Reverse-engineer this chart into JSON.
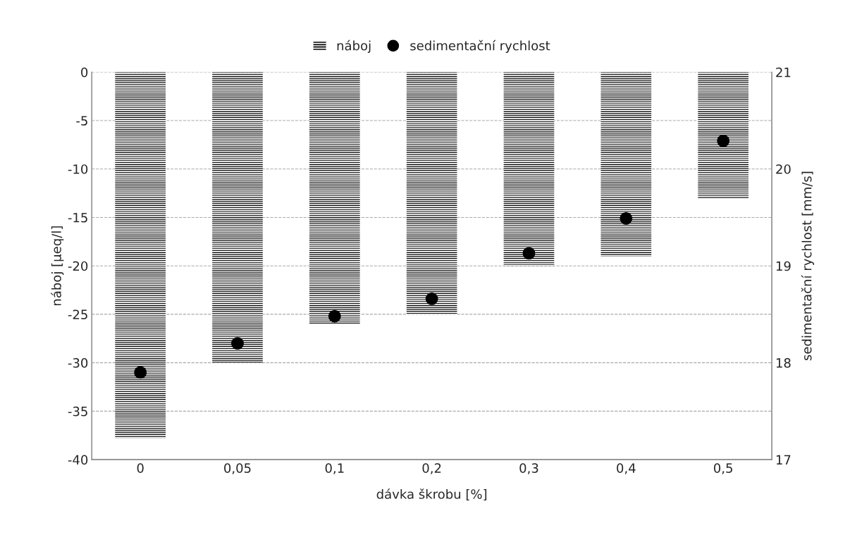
{
  "chart_data": {
    "type": "bar",
    "xlabel": "dávka škrobu [%]",
    "ylabel": "náboj [μeq/l]",
    "y2label": "sedimentační rychlost [mm/s]",
    "categories": [
      "0",
      "0,05",
      "0,1",
      "0,2",
      "0,3",
      "0,4",
      "0,5"
    ],
    "series": [
      {
        "name": "náboj",
        "color": "#000000",
        "values": [
          -37.8,
          -30,
          -26,
          -25,
          -20,
          -19,
          -13
        ]
      },
      {
        "name": "sedimentační rychlost",
        "type": "scatter",
        "axis": "y2",
        "color": "#000000",
        "marker": "circle",
        "values": [
          17.9,
          18.2,
          18.48,
          18.66,
          19.13,
          19.49,
          20.29
        ]
      }
    ],
    "ylim": [
      -40,
      0
    ],
    "yticks": [
      -40,
      -35,
      -30,
      -25,
      -20,
      -15,
      -10,
      -5,
      0
    ],
    "y2lim": [
      17,
      21
    ],
    "y2ticks": [
      17,
      18,
      19,
      20,
      21
    ],
    "grid": "y",
    "legend": "top"
  }
}
